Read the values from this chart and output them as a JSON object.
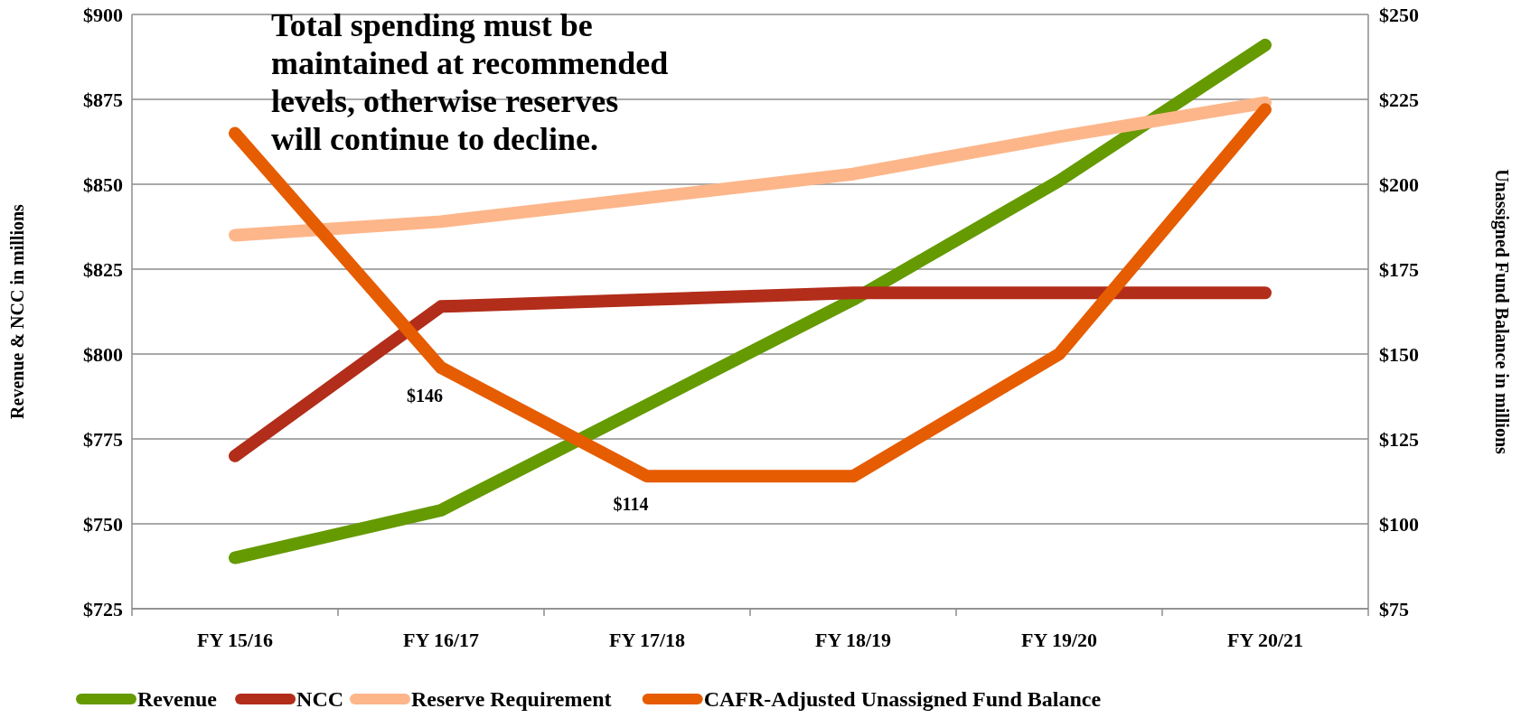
{
  "chart_data": {
    "type": "line",
    "ylabel": "Revenue & NCC in millions",
    "y2label": "Unassigned Fund Balance in millions",
    "categories": [
      "FY 15/16",
      "FY 16/17",
      "FY 17/18",
      "FY 18/19",
      "FY 19/20",
      "FY 20/21"
    ],
    "series": [
      {
        "name": "Revenue",
        "color": "#659a00",
        "values": [
          740,
          754,
          785,
          816,
          851,
          891
        ]
      },
      {
        "name": "NCC",
        "color": "#b22d1a",
        "values": [
          770,
          814,
          816,
          818,
          818,
          818
        ]
      },
      {
        "name": "Reserve Requirement",
        "color": "#fdb68a",
        "axis": "y2",
        "values": [
          185,
          189,
          196,
          203,
          214,
          224
        ]
      },
      {
        "name": "CAFR-Adjusted Unassigned Fund Balance",
        "color": "#e65c00",
        "axis": "y2",
        "values": [
          215,
          146,
          114,
          114,
          150,
          222
        ],
        "value_labels": [
          null,
          "$146",
          "$114",
          null,
          null,
          null
        ]
      }
    ],
    "ylim": [
      725,
      900
    ],
    "yticks": [
      {
        "value": 725,
        "label": "$725"
      },
      {
        "value": 750,
        "label": "$750"
      },
      {
        "value": 775,
        "label": "$775"
      },
      {
        "value": 800,
        "label": "$800"
      },
      {
        "value": 825,
        "label": "$825"
      },
      {
        "value": 850,
        "label": "$850"
      },
      {
        "value": 875,
        "label": "$875"
      },
      {
        "value": 900,
        "label": "$900"
      }
    ],
    "y2lim": [
      75,
      250
    ],
    "y2ticks": [
      {
        "value": 75,
        "label": "$75"
      },
      {
        "value": 100,
        "label": "$100"
      },
      {
        "value": 125,
        "label": "$125"
      },
      {
        "value": 150,
        "label": "$150"
      },
      {
        "value": 175,
        "label": "$175"
      },
      {
        "value": 200,
        "label": "$200"
      },
      {
        "value": 225,
        "label": "$225"
      },
      {
        "value": 250,
        "label": "$250"
      }
    ],
    "grid": "y",
    "legend": "bottom",
    "marker": "none",
    "line_style": "solid",
    "annotations": [
      "Total spending must be maintained at recommended levels, otherwise reserves will continue to decline."
    ]
  }
}
